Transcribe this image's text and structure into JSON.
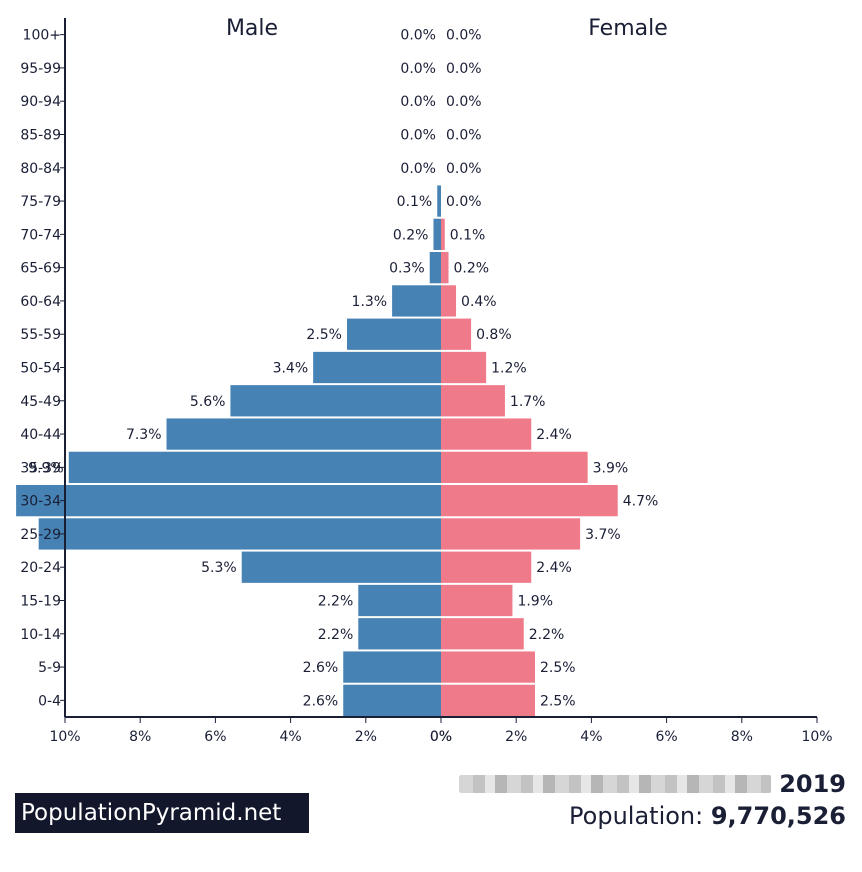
{
  "chart_data": {
    "type": "bar",
    "orientation": "horizontal-pyramid",
    "categories": [
      "100+",
      "95-99",
      "90-94",
      "85-89",
      "80-84",
      "75-79",
      "70-74",
      "65-69",
      "60-64",
      "55-59",
      "50-54",
      "45-49",
      "40-44",
      "35-39",
      "30-34",
      "25-29",
      "20-24",
      "15-19",
      "10-14",
      "5-9",
      "0-4"
    ],
    "series": [
      {
        "name": "Male",
        "color": "#4682b4",
        "values": [
          0.0,
          0.0,
          0.0,
          0.0,
          0.0,
          0.1,
          0.2,
          0.3,
          1.3,
          2.5,
          3.4,
          5.6,
          7.3,
          9.9,
          11.3,
          10.7,
          5.3,
          2.2,
          2.2,
          2.6,
          2.6
        ],
        "labels": [
          "0.0%",
          "0.0%",
          "0.0%",
          "0.0%",
          "0.0%",
          "0.1%",
          "0.2%",
          "0.3%",
          "1.3%",
          "2.5%",
          "3.4%",
          "5.6%",
          "7.3%",
          "9.9%",
          "",
          "",
          "5.3%",
          "2.2%",
          "2.2%",
          "2.6%",
          "2.6%"
        ]
      },
      {
        "name": "Female",
        "color": "#ef7a8a",
        "values": [
          0.0,
          0.0,
          0.0,
          0.0,
          0.0,
          0.0,
          0.1,
          0.2,
          0.4,
          0.8,
          1.2,
          1.7,
          2.4,
          3.9,
          4.7,
          3.7,
          2.4,
          1.9,
          2.2,
          2.5,
          2.5
        ],
        "labels": [
          "0.0%",
          "0.0%",
          "0.0%",
          "0.0%",
          "0.0%",
          "0.0%",
          "0.1%",
          "0.2%",
          "0.4%",
          "0.8%",
          "1.2%",
          "1.7%",
          "2.4%",
          "3.9%",
          "4.7%",
          "3.7%",
          "2.4%",
          "1.9%",
          "2.2%",
          "2.5%",
          "2.5%"
        ]
      }
    ],
    "xlim": [
      0,
      10
    ],
    "xticks": [
      "10%",
      "8%",
      "6%",
      "4%",
      "2%",
      "0%",
      "0%",
      "2%",
      "4%",
      "6%",
      "8%",
      "10%"
    ],
    "xlabel": "",
    "ylabel": ""
  },
  "brand": "PopulationPyramid.net",
  "year": "2019",
  "population_label": "Population:",
  "population_value": "9,770,526"
}
